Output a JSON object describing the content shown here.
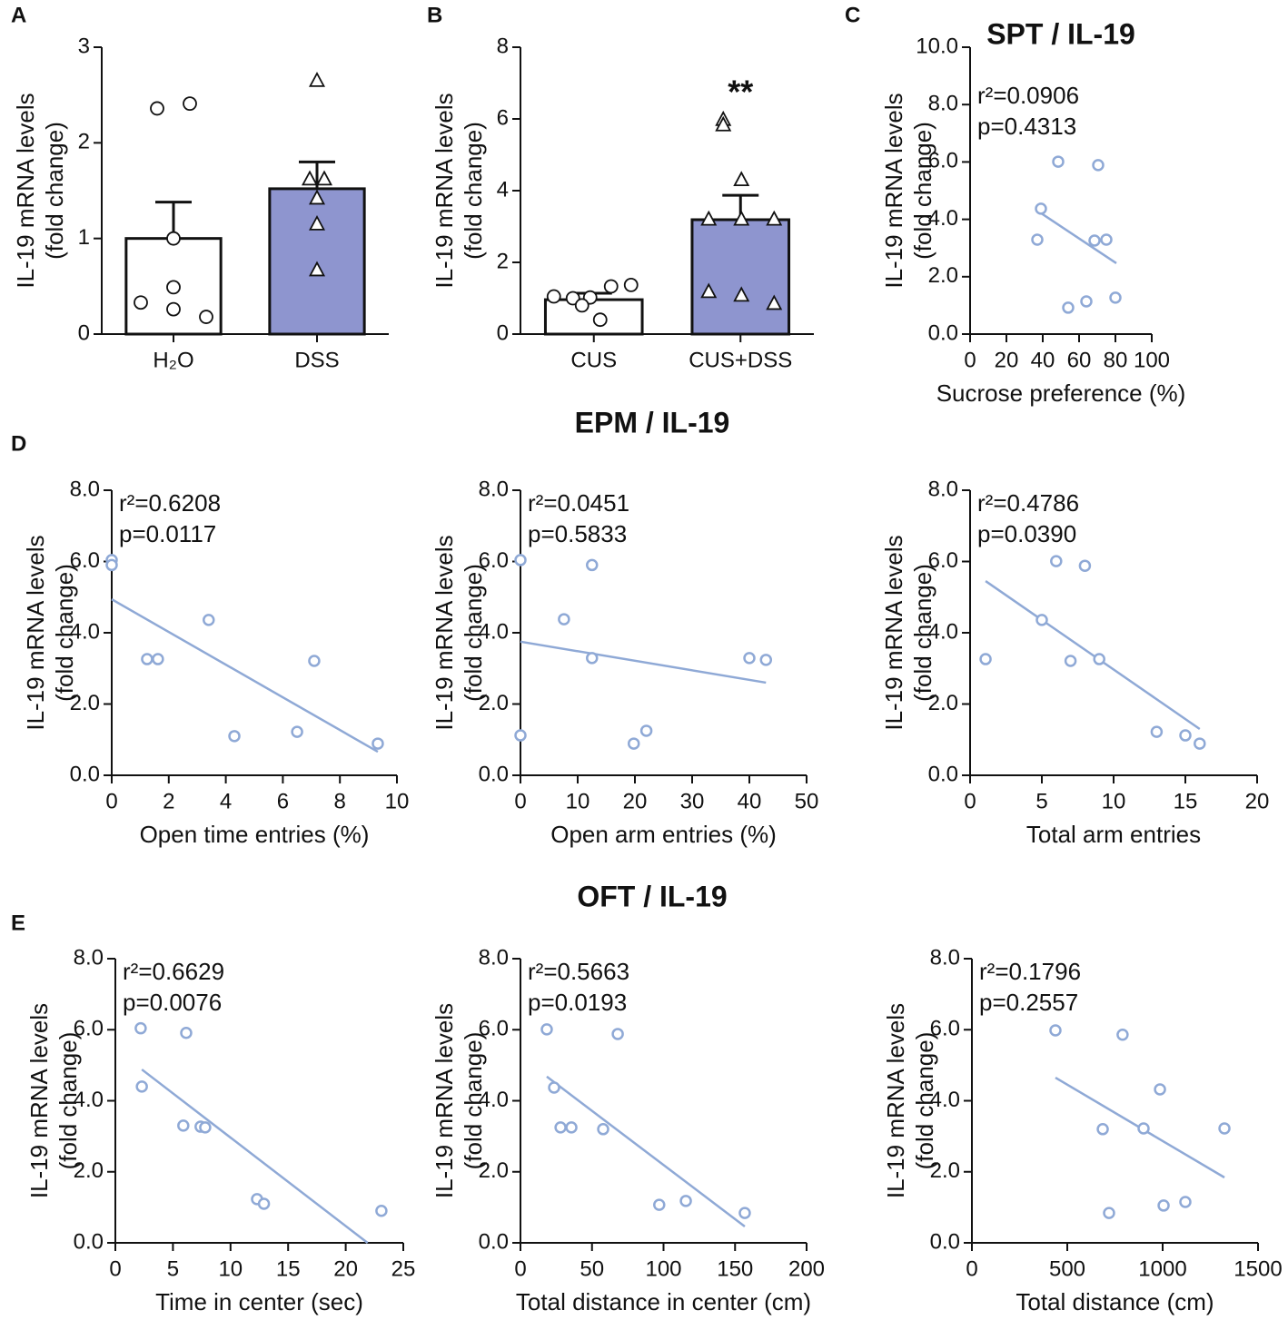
{
  "chart_data": [
    {
      "type": "bar",
      "panel_label": "A",
      "ylabel": [
        "IL-19 mRNA levels",
        "(fold change)"
      ],
      "categories": [
        "H₂O",
        "DSS"
      ],
      "values": [
        1.0,
        1.52
      ],
      "errors": [
        0.38,
        0.28
      ],
      "colors": [
        "#ffffff",
        "#8e95cf"
      ],
      "markers": [
        "circle",
        "triangle"
      ],
      "points": [
        [
          2.36,
          2.41,
          1.0,
          0.49,
          0.33,
          0.26,
          0.18
        ],
        [
          2.65,
          1.62,
          1.62,
          1.42,
          1.15,
          0.67
        ]
      ],
      "ylim": [
        0,
        3
      ],
      "yticks": [
        0,
        1,
        2,
        3
      ]
    },
    {
      "type": "bar",
      "panel_label": "B",
      "ylabel": [
        "IL-19 mRNA levels",
        "(fold change)"
      ],
      "categories": [
        "CUS",
        "CUS+DSS"
      ],
      "values": [
        0.96,
        3.19
      ],
      "errors": [
        0.18,
        0.68
      ],
      "colors": [
        "#ffffff",
        "#8e95cf"
      ],
      "markers": [
        "circle",
        "triangle"
      ],
      "points": [
        [
          1.37,
          1.33,
          1.05,
          1.0,
          1.02,
          0.8,
          0.4
        ],
        [
          5.98,
          5.83,
          4.3,
          3.2,
          3.2,
          3.2,
          1.18,
          1.08,
          0.85
        ]
      ],
      "significance": [
        null,
        "**"
      ],
      "ylim": [
        0,
        8
      ],
      "yticks": [
        0,
        2,
        4,
        6,
        8
      ]
    },
    {
      "type": "scatter",
      "panel_label": "C",
      "title": "SPT / IL-19",
      "ylabel": [
        "IL-19 mRNA levels",
        "(fold change)"
      ],
      "xlabel": "Sucrose preference (%)",
      "annotations": [
        "r²=0.0906",
        "p=0.4313"
      ],
      "color": "#8fa9d6",
      "x": [
        48.5,
        70.5,
        39,
        37,
        68.5,
        75,
        64,
        80,
        54
      ],
      "y": [
        6.01,
        5.89,
        4.37,
        3.29,
        3.26,
        3.29,
        1.14,
        1.27,
        0.92
      ],
      "fit": {
        "x": [
          37,
          80.5
        ],
        "y": [
          4.3,
          2.47
        ]
      },
      "xlim": [
        0,
        100
      ],
      "xticks": [
        0,
        20,
        40,
        60,
        80,
        100
      ],
      "ylim": [
        0,
        10
      ],
      "yticks": [
        {
          "value": 0,
          "label": "0.0"
        },
        {
          "value": 2,
          "label": "2.0"
        },
        {
          "value": 4,
          "label": "4.0"
        },
        {
          "value": 6,
          "label": "6.0"
        },
        {
          "value": 8,
          "label": "8.0"
        },
        {
          "value": 10,
          "label": "10.0"
        }
      ]
    },
    {
      "type": "scatter",
      "panel_label": "D",
      "group_title": "EPM / IL-19",
      "ylabel": [
        "IL-19 mRNA levels",
        "(fold change)"
      ],
      "xlabel": "Open time entries (%)",
      "annotations": [
        "r²=0.6208",
        "p=0.0117"
      ],
      "color": "#8fa9d6",
      "x": [
        0,
        0,
        3.4,
        1.24,
        1.62,
        7.1,
        4.3,
        6.5,
        9.33
      ],
      "y": [
        6.04,
        5.9,
        4.36,
        3.26,
        3.26,
        3.21,
        1.1,
        1.22,
        0.89
      ],
      "fit": {
        "x": [
          0,
          9.33
        ],
        "y": [
          4.94,
          0.66
        ]
      },
      "xlim": [
        0,
        10
      ],
      "xticks": [
        0,
        2,
        4,
        6,
        8,
        10
      ],
      "ylim": [
        0,
        8
      ],
      "yticks": [
        {
          "value": 0,
          "label": "0.0"
        },
        {
          "value": 2,
          "label": "2.0"
        },
        {
          "value": 4,
          "label": "4.0"
        },
        {
          "value": 6,
          "label": "6.0"
        },
        {
          "value": 8,
          "label": "8.0"
        }
      ]
    },
    {
      "type": "scatter",
      "ylabel": [
        "IL-19 mRNA levels",
        "(fold change)"
      ],
      "xlabel": "Open arm entries (%)",
      "annotations": [
        "r²=0.0451",
        "p=0.5833"
      ],
      "color": "#8fa9d6",
      "x": [
        0,
        12.5,
        7.6,
        12.5,
        40,
        42.9,
        0,
        22,
        19.8
      ],
      "y": [
        6.04,
        5.9,
        4.38,
        3.29,
        3.29,
        3.24,
        1.12,
        1.25,
        0.89
      ],
      "fit": {
        "x": [
          0,
          42.9
        ],
        "y": [
          3.75,
          2.6
        ]
      },
      "xlim": [
        0,
        50
      ],
      "xticks": [
        0,
        10,
        20,
        30,
        40,
        50
      ],
      "ylim": [
        0,
        8
      ],
      "yticks": [
        {
          "value": 0,
          "label": "0.0"
        },
        {
          "value": 2,
          "label": "2.0"
        },
        {
          "value": 4,
          "label": "4.0"
        },
        {
          "value": 6,
          "label": "6.0"
        },
        {
          "value": 8,
          "label": "8.0"
        }
      ]
    },
    {
      "type": "scatter",
      "ylabel": [
        "IL-19 mRNA levels",
        "(fold change)"
      ],
      "xlabel": "Total arm entries",
      "annotations": [
        "r²=0.4786",
        "p=0.0390"
      ],
      "color": "#8fa9d6",
      "x": [
        6,
        8,
        5,
        1.08,
        7,
        9,
        13,
        15,
        16
      ],
      "y": [
        6.01,
        5.88,
        4.36,
        3.26,
        3.21,
        3.26,
        1.22,
        1.12,
        0.89
      ],
      "fit": {
        "x": [
          1.08,
          16
        ],
        "y": [
          5.45,
          1.3
        ]
      },
      "xlim": [
        0,
        20
      ],
      "xticks": [
        0,
        5,
        10,
        15,
        20
      ],
      "ylim": [
        0,
        8
      ],
      "yticks": [
        {
          "value": 0,
          "label": "0.0"
        },
        {
          "value": 2,
          "label": "2.0"
        },
        {
          "value": 4,
          "label": "4.0"
        },
        {
          "value": 6,
          "label": "6.0"
        },
        {
          "value": 8,
          "label": "8.0"
        }
      ]
    },
    {
      "type": "scatter",
      "panel_label": "E",
      "group_title": "OFT / IL-19",
      "ylabel": [
        "IL-19 mRNA levels",
        "(fold change)"
      ],
      "xlabel": "Time in center (sec)",
      "annotations": [
        "r²=0.6629",
        "p=0.0076"
      ],
      "color": "#8fa9d6",
      "x": [
        2.2,
        6.15,
        2.3,
        5.9,
        7.4,
        7.8,
        12.3,
        12.9,
        23.1
      ],
      "y": [
        6.04,
        5.91,
        4.4,
        3.3,
        3.27,
        3.25,
        1.23,
        1.1,
        0.9
      ],
      "fit": {
        "x": [
          2.3,
          21.9
        ],
        "y": [
          4.88,
          0
        ]
      },
      "xlim": [
        0,
        25
      ],
      "xticks": [
        0,
        5,
        10,
        15,
        20,
        25
      ],
      "ylim": [
        0,
        8
      ],
      "yticks": [
        {
          "value": 0,
          "label": "0.0"
        },
        {
          "value": 2,
          "label": "2.0"
        },
        {
          "value": 4,
          "label": "4.0"
        },
        {
          "value": 6,
          "label": "6.0"
        },
        {
          "value": 8,
          "label": "8.0"
        }
      ]
    },
    {
      "type": "scatter",
      "ylabel": [
        "IL-19 mRNA levels",
        "(fold change)"
      ],
      "xlabel": "Total distance in center (cm)",
      "annotations": [
        "r²=0.5663",
        "p=0.0193"
      ],
      "color": "#8fa9d6",
      "x": [
        18.4,
        68,
        23.5,
        28,
        35.6,
        57.8,
        97,
        115.6,
        156.8
      ],
      "y": [
        6.01,
        5.88,
        4.37,
        3.25,
        3.25,
        3.2,
        1.07,
        1.18,
        0.84
      ],
      "fit": {
        "x": [
          18.4,
          156.8
        ],
        "y": [
          4.68,
          0.46
        ]
      },
      "xlim": [
        0,
        200
      ],
      "xticks": [
        0,
        50,
        100,
        150,
        200
      ],
      "ylim": [
        0,
        8
      ],
      "yticks": [
        {
          "value": 0,
          "label": "0.0"
        },
        {
          "value": 2,
          "label": "2.0"
        },
        {
          "value": 4,
          "label": "4.0"
        },
        {
          "value": 6,
          "label": "6.0"
        },
        {
          "value": 8,
          "label": "8.0"
        }
      ]
    },
    {
      "type": "scatter",
      "ylabel": [
        "IL-19 mRNA levels",
        "(fold change)"
      ],
      "xlabel": "Total distance (cm)",
      "annotations": [
        "r²=0.1796",
        "p=0.2557"
      ],
      "color": "#8fa9d6",
      "x": [
        438,
        790,
        986,
        686,
        900,
        1324,
        719,
        1005,
        1119
      ],
      "y": [
        5.98,
        5.86,
        4.32,
        3.2,
        3.22,
        3.22,
        0.84,
        1.05,
        1.15
      ],
      "fit": {
        "x": [
          438,
          1324
        ],
        "y": [
          4.65,
          1.84
        ]
      },
      "xlim": [
        0,
        1500
      ],
      "xticks": [
        0,
        500,
        1000,
        1500
      ],
      "ylim": [
        0,
        8
      ],
      "yticks": [
        {
          "value": 0,
          "label": "0.0"
        },
        {
          "value": 2,
          "label": "2.0"
        },
        {
          "value": 4,
          "label": "4.0"
        },
        {
          "value": 6,
          "label": "6.0"
        },
        {
          "value": 8,
          "label": "8.0"
        }
      ]
    }
  ]
}
